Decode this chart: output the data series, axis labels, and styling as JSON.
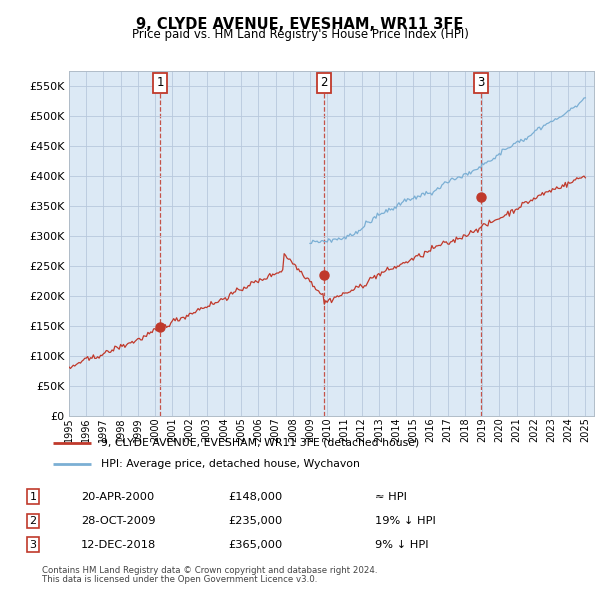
{
  "title": "9, CLYDE AVENUE, EVESHAM, WR11 3FE",
  "subtitle": "Price paid vs. HM Land Registry's House Price Index (HPI)",
  "background_color": "#ffffff",
  "plot_bg_color": "#dce9f5",
  "hpi_color": "#7bafd4",
  "price_color": "#c0392b",
  "ylim": [
    0,
    575000
  ],
  "yticks": [
    0,
    50000,
    100000,
    150000,
    200000,
    250000,
    300000,
    350000,
    400000,
    450000,
    500000,
    550000
  ],
  "sale_points": [
    {
      "date_num": 2000.3,
      "price": 148000,
      "label": "1"
    },
    {
      "date_num": 2009.83,
      "price": 235000,
      "label": "2"
    },
    {
      "date_num": 2018.95,
      "price": 365000,
      "label": "3"
    }
  ],
  "legend_line1": "9, CLYDE AVENUE, EVESHAM, WR11 3FE (detached house)",
  "legend_line2": "HPI: Average price, detached house, Wychavon",
  "table_rows": [
    {
      "num": "1",
      "date": "20-APR-2000",
      "price": "£148,000",
      "vs_hpi": "≈ HPI"
    },
    {
      "num": "2",
      "date": "28-OCT-2009",
      "price": "£235,000",
      "vs_hpi": "19% ↓ HPI"
    },
    {
      "num": "3",
      "date": "12-DEC-2018",
      "price": "£365,000",
      "vs_hpi": "9% ↓ HPI"
    }
  ],
  "footnote1": "Contains HM Land Registry data © Crown copyright and database right 2024.",
  "footnote2": "This data is licensed under the Open Government Licence v3.0."
}
